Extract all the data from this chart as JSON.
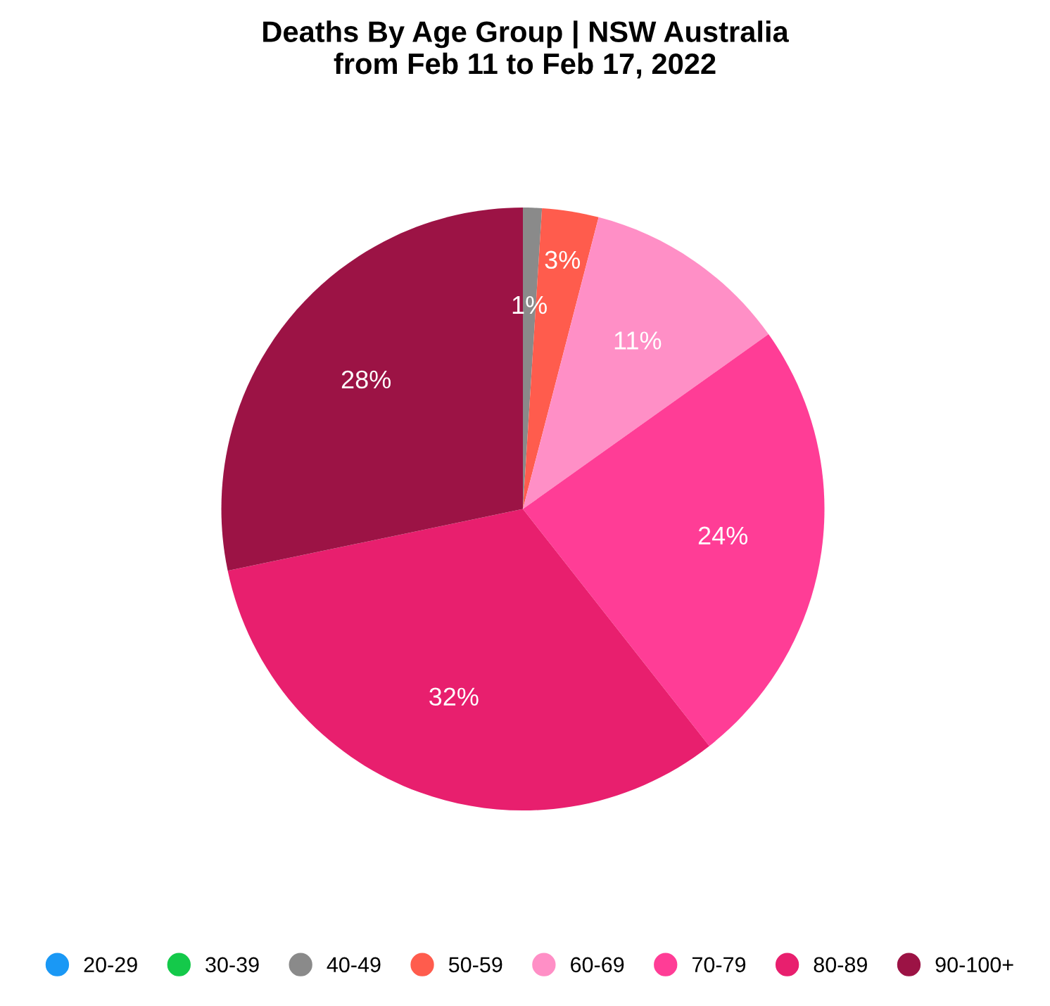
{
  "chart_data": {
    "type": "pie",
    "title": "Deaths By Age Group | NSW Australia\nfrom Feb 11 to Feb 17, 2022",
    "categories": [
      "20-29",
      "30-39",
      "40-49",
      "50-59",
      "60-69",
      "70-79",
      "80-89",
      "90-100+"
    ],
    "values": [
      0,
      0,
      1,
      3,
      11,
      24,
      32,
      28
    ],
    "value_labels": [
      null,
      null,
      "1%",
      "3%",
      "11%",
      "24%",
      "32%",
      "28%"
    ],
    "colors": [
      "#1a98f5",
      "#14c94a",
      "#8a8a8a",
      "#ff5c4d",
      "#ff8fc6",
      "#ff3d96",
      "#e81f6e",
      "#9c1345"
    ],
    "legend": "bottom"
  }
}
